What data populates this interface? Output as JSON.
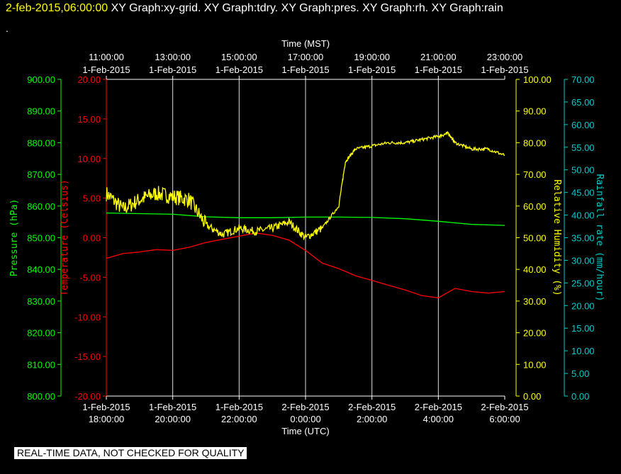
{
  "header": {
    "date_time": "2-feb-2015,06:00:00",
    "graphs": "XY Graph:xy-grid.  XY Graph:tdry.  XY Graph:pres.  XY Graph:rh.  XY Graph:rain",
    "dot": "."
  },
  "footer": {
    "notice": "REAL-TIME DATA, NOT CHECKED FOR QUALITY"
  },
  "chart_data": {
    "type": "line",
    "grid": true,
    "top_axis": {
      "label": "Time (MST)",
      "ticks": [
        [
          "11:00:00",
          "1-Feb-2015"
        ],
        [
          "13:00:00",
          "1-Feb-2015"
        ],
        [
          "15:00:00",
          "1-Feb-2015"
        ],
        [
          "17:00:00",
          "1-Feb-2015"
        ],
        [
          "19:00:00",
          "1-Feb-2015"
        ],
        [
          "21:00:00",
          "1-Feb-2015"
        ],
        [
          "23:00:00",
          "1-Feb-2015"
        ]
      ]
    },
    "bottom_axis": {
      "label": "Time (UTC)",
      "ticks": [
        [
          "1-Feb-2015",
          "18:00:00"
        ],
        [
          "1-Feb-2015",
          "20:00:00"
        ],
        [
          "1-Feb-2015",
          "22:00:00"
        ],
        [
          "2-Feb-2015",
          "0:00:00"
        ],
        [
          "2-Feb-2015",
          "2:00:00"
        ],
        [
          "2-Feb-2015",
          "4:00:00"
        ],
        [
          "2-Feb-2015",
          "6:00:00"
        ]
      ]
    },
    "x_range_hours_utc": [
      18,
      30
    ],
    "axes": {
      "pressure": {
        "label": "Pressure (hPa)",
        "min": 800,
        "max": 900,
        "step": 10,
        "color": "#00ff00"
      },
      "temperature": {
        "label": "Temperature (Celsius)",
        "min": -20,
        "max": 20,
        "step": 5,
        "color": "#ff0000"
      },
      "humidity": {
        "label": "Relative Humidity (%)",
        "min": 0,
        "max": 100,
        "step": 10,
        "color": "#ffff00"
      },
      "rainfall": {
        "label": "Rainfall rate (mm/hour)",
        "min": 0,
        "max": 70,
        "step": 5,
        "color": "#00cccc"
      }
    },
    "series": [
      {
        "name": "pres",
        "axis": "pressure",
        "color": "#00ff00",
        "x": [
          18,
          19,
          20,
          21,
          22,
          23,
          24,
          25,
          26,
          27,
          28,
          29,
          30
        ],
        "values": [
          857.8,
          857.6,
          857.4,
          856.6,
          856.3,
          856.3,
          856.5,
          856.5,
          856.4,
          856.0,
          855.2,
          854.2,
          853.9
        ]
      },
      {
        "name": "tdry",
        "axis": "temperature",
        "color": "#ff0000",
        "x": [
          18,
          18.5,
          19,
          19.5,
          20,
          20.5,
          21,
          21.5,
          22,
          22.5,
          23,
          23.5,
          24,
          24.5,
          25,
          25.5,
          26,
          26.5,
          27,
          27.5,
          28,
          28.5,
          29,
          29.5,
          30
        ],
        "values": [
          -2.6,
          -2.0,
          -1.8,
          -1.5,
          -1.6,
          -1.2,
          -0.6,
          -0.2,
          0.2,
          0.6,
          0.3,
          -0.3,
          -1.6,
          -3.2,
          -3.9,
          -4.8,
          -5.4,
          -6.0,
          -6.6,
          -7.3,
          -7.6,
          -6.4,
          -6.8,
          -7.0,
          -6.8
        ]
      },
      {
        "name": "rh",
        "axis": "humidity",
        "color": "#ffff00",
        "x": [
          18,
          18.5,
          19,
          19.5,
          20,
          20.5,
          21,
          21.5,
          22,
          22.5,
          23,
          23.5,
          24,
          24.5,
          25,
          25.2,
          25.5,
          26,
          26.5,
          27,
          27.5,
          28,
          28.3,
          28.5,
          29,
          29.5,
          30
        ],
        "values": [
          64,
          59,
          62,
          64,
          63,
          62,
          54,
          51,
          53,
          52,
          53,
          55,
          50,
          53,
          60,
          74,
          78,
          79,
          80,
          80,
          81,
          82,
          83,
          80,
          78,
          78,
          76
        ]
      },
      {
        "name": "rain",
        "axis": "rainfall",
        "color": "#00cccc",
        "x": [],
        "values": []
      }
    ]
  }
}
